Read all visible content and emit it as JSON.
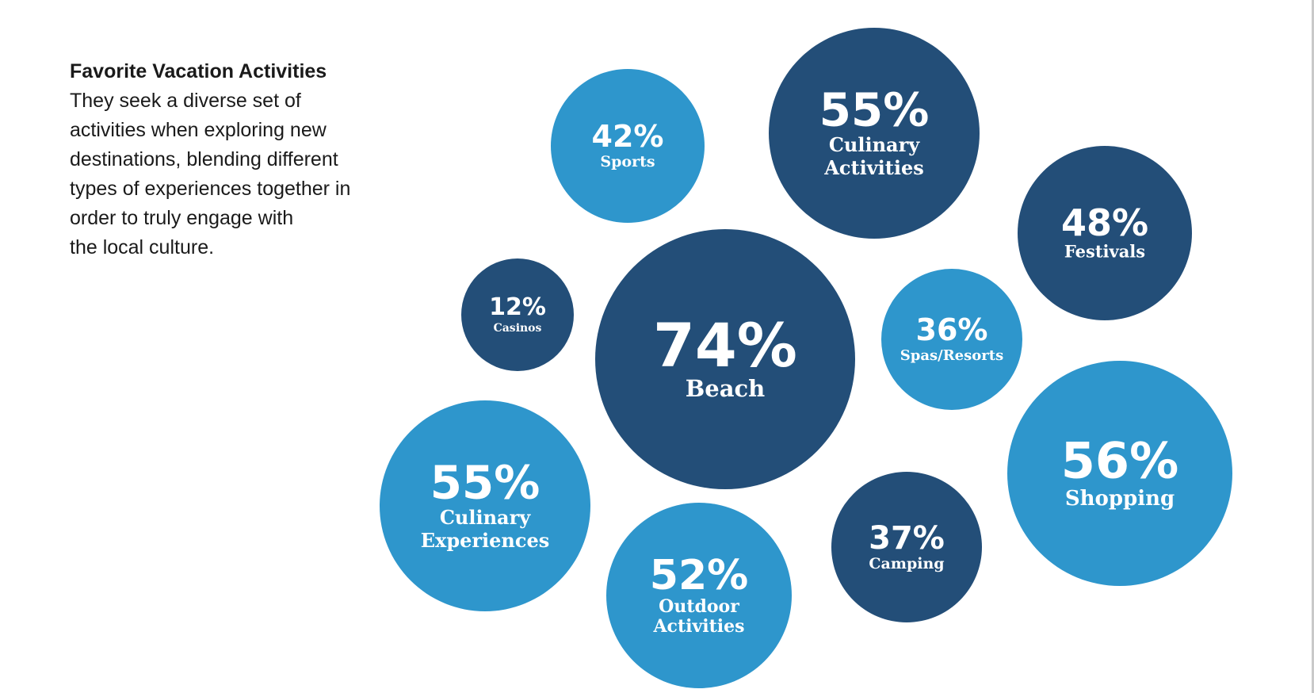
{
  "intro": {
    "title": "Favorite Vacation Activities",
    "lines": [
      "They seek a diverse set of",
      "activities when exploring new",
      "destinations, blending different",
      "types of experiences together in",
      "order to truly engage with",
      "the local culture."
    ]
  },
  "colors": {
    "dark": "#234e78",
    "light": "#2e96cc",
    "text": "#ffffff"
  },
  "chart_data": {
    "type": "bubble",
    "unit": "%",
    "items": [
      {
        "label": "Sports",
        "value": 42,
        "display": "42%",
        "color": "light"
      },
      {
        "label": "Culinary Activities",
        "label_lines": [
          "Culinary",
          "Activities"
        ],
        "value": 55,
        "display": "55%",
        "color": "dark"
      },
      {
        "label": "Festivals",
        "value": 48,
        "display": "48%",
        "color": "dark"
      },
      {
        "label": "Casinos",
        "value": 12,
        "display": "12%",
        "color": "dark"
      },
      {
        "label": "Beach",
        "value": 74,
        "display": "74%",
        "color": "dark"
      },
      {
        "label": "Spas/Resorts",
        "value": 36,
        "display": "36%",
        "color": "light"
      },
      {
        "label": "Culinary Experiences",
        "label_lines": [
          "Culinary",
          "Experiences"
        ],
        "value": 55,
        "display": "55%",
        "color": "light"
      },
      {
        "label": "Shopping",
        "value": 56,
        "display": "56%",
        "color": "light"
      },
      {
        "label": "Camping",
        "value": 37,
        "display": "37%",
        "color": "dark"
      },
      {
        "label": "Outdoor Activities",
        "label_lines": [
          "Outdoor",
          "Activities"
        ],
        "value": 52,
        "display": "52%",
        "color": "light"
      }
    ]
  }
}
